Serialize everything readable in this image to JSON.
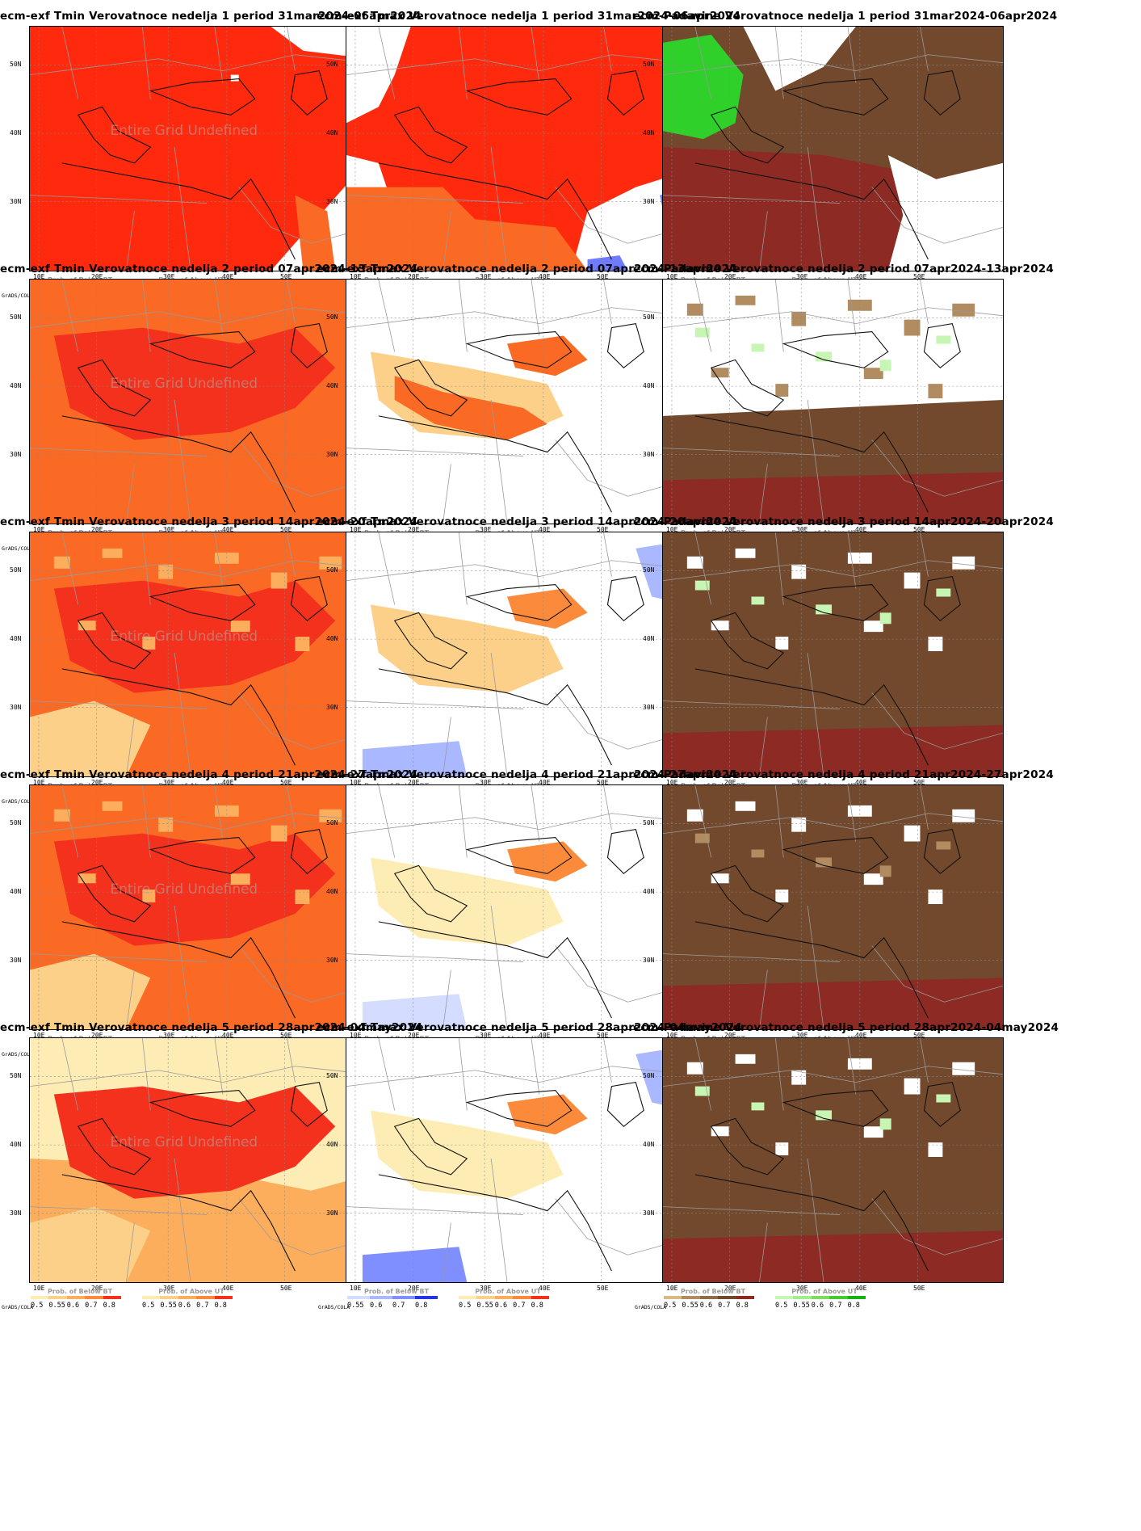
{
  "credit": "GrADS/COLA",
  "x_ticks": [
    "10E",
    "20E",
    "30E",
    "40E",
    "50E"
  ],
  "y_ticks": [
    "50N",
    "40N",
    "30N"
  ],
  "undefined_note": "Entire Grid Undefined",
  "legends": {
    "tmin": [
      {
        "title": "Prob. of Below BT",
        "ticks": [
          "0.5",
          "0.55",
          "0.6",
          "0.7",
          "0.8"
        ],
        "colors": [
          "#fdecb4",
          "#fdd08a",
          "#fdae5c",
          "#fb8a3a",
          "#f4311d"
        ]
      },
      {
        "title": "Prob. of Above UT",
        "ticks": [
          "0.5",
          "0.55",
          "0.6",
          "0.7",
          "0.8"
        ],
        "colors": [
          "#fdecb4",
          "#fdd08a",
          "#fdae5c",
          "#fb8a3a",
          "#f4311d"
        ]
      }
    ],
    "tmax": [
      {
        "title": "Prob. of Below BT",
        "ticks": [
          "0.55",
          "0.6",
          "0.7",
          "0.8"
        ],
        "colors": [
          "#d4dcff",
          "#aab8ff",
          "#7f8fff",
          "#2333e8"
        ]
      },
      {
        "title": "Prob. of Above UT",
        "ticks": [
          "0.5",
          "0.55",
          "0.6",
          "0.7",
          "0.8"
        ],
        "colors": [
          "#fdecb4",
          "#fdd08a",
          "#fdae5c",
          "#fb8a3a",
          "#f4311d"
        ]
      }
    ],
    "precip": [
      {
        "title": "Prob. of Below BT",
        "ticks": [
          "0.5",
          "0.55",
          "0.6",
          "0.7",
          "0.8"
        ],
        "colors": [
          "#d8b988",
          "#b08c60",
          "#8f6c48",
          "#73492d",
          "#8c2a23"
        ]
      },
      {
        "title": "Prob. of Above UT",
        "ticks": [
          "0.5",
          "0.55",
          "0.6",
          "0.7",
          "0.8"
        ],
        "colors": [
          "#c6f5b4",
          "#a3ed8a",
          "#7cdd5c",
          "#44cc2e",
          "#12b412"
        ]
      }
    ]
  },
  "rows": [
    {
      "week": 1,
      "panels": [
        {
          "title": "ecm-exf Tmin Verovatnoce nedelja 1 period 31mar2024-06apr2024",
          "type": "tmin",
          "undefined": true,
          "base": "#ff2a0e",
          "fills": [
            {
              "c": "#ffffff",
              "shape": "e1"
            },
            {
              "c": "#fb6a24",
              "shape": "e2"
            }
          ]
        },
        {
          "title": "ecm-exf Tmax Verovatnoce nedelja 1 period 31mar2024-06apr2024",
          "type": "tmax",
          "undefined": false,
          "base": "#ff2a0e",
          "fills": [
            {
              "c": "#ffffff",
              "shape": "w_left"
            },
            {
              "c": "#ffffff",
              "shape": "se"
            },
            {
              "c": "#fb6a24",
              "shape": "band_s"
            },
            {
              "c": "#6f7cff",
              "shape": "blue_se"
            }
          ]
        },
        {
          "title": "ecm-Padavine Verovatnoce nedelja 1 period 31mar2024-06apr2024",
          "type": "precip",
          "undefined": false,
          "base": "#8c2a23",
          "fills": [
            {
              "c": "#73492d",
              "shape": "band_n"
            },
            {
              "c": "#ffffff",
              "shape": "ne_w"
            },
            {
              "c": "#2fd02a",
              "shape": "green_nw"
            },
            {
              "c": "#ffffff",
              "shape": "se"
            }
          ]
        }
      ]
    },
    {
      "week": 2,
      "panels": [
        {
          "title": "ecm-exf Tmin Verovatnoce nedelja 2 period 07apr2024-13apr2024",
          "type": "tmin",
          "undefined": true,
          "base": "#fb6a24",
          "fills": [
            {
              "c": "#f4311d",
              "shape": "center"
            }
          ]
        },
        {
          "title": "ecm-exf Tmax Verovatnoce nedelja 2 period 07apr2024-13apr2024",
          "type": "tmax",
          "undefined": false,
          "base": "#ffffff",
          "fills": [
            {
              "c": "#fdd08a",
              "shape": "med_s"
            },
            {
              "c": "#fb6a24",
              "shape": "med"
            },
            {
              "c": "#fb6a24",
              "shape": "blacksea"
            }
          ]
        },
        {
          "title": "ecm-Padavine Verovatnoce nedelja 2 period 07apr2024-13apr2024",
          "type": "precip",
          "undefined": false,
          "base": "#ffffff",
          "fills": [
            {
              "c": "#73492d",
              "shape": "south"
            },
            {
              "c": "#8c2a23",
              "shape": "far_s"
            },
            {
              "c": "#b08c60",
              "shape": "spots_n"
            },
            {
              "c": "#c6f5b4",
              "shape": "spots_g"
            }
          ]
        }
      ]
    },
    {
      "week": 3,
      "panels": [
        {
          "title": "ecm-exf Tmin Verovatnoce nedelja 3 period 14apr2024-20apr2024",
          "type": "tmin",
          "undefined": true,
          "base": "#fb6a24",
          "fills": [
            {
              "c": "#f4311d",
              "shape": "center"
            },
            {
              "c": "#fdd08a",
              "shape": "sw"
            },
            {
              "c": "#fdae5c",
              "shape": "spots_n"
            }
          ]
        },
        {
          "title": "ecm-exf Tmax Verovatnoce nedelja 3 period 14apr2024-20apr2024",
          "type": "tmax",
          "undefined": false,
          "base": "#ffffff",
          "fills": [
            {
              "c": "#fdd08a",
              "shape": "med_s"
            },
            {
              "c": "#fb8a3a",
              "shape": "blacksea"
            },
            {
              "c": "#aab8ff",
              "shape": "blue_ne"
            },
            {
              "c": "#aab8ff",
              "shape": "blue_sw"
            }
          ]
        },
        {
          "title": "ecm-Padavine Verovatnoce nedelja 3 period 14apr2024-20apr2024",
          "type": "precip",
          "undefined": false,
          "base": "#73492d",
          "fills": [
            {
              "c": "#ffffff",
              "shape": "spots_n"
            },
            {
              "c": "#8c2a23",
              "shape": "far_s"
            },
            {
              "c": "#c6f5b4",
              "shape": "spots_g"
            }
          ]
        }
      ]
    },
    {
      "week": 4,
      "panels": [
        {
          "title": "ecm-exf Tmin Verovatnoce nedelja 4 period 21apr2024-27apr2024",
          "type": "tmin",
          "undefined": true,
          "base": "#fb6a24",
          "fills": [
            {
              "c": "#f4311d",
              "shape": "center"
            },
            {
              "c": "#fdd08a",
              "shape": "sw"
            },
            {
              "c": "#fdae5c",
              "shape": "spots_n"
            }
          ]
        },
        {
          "title": "ecm-exf Tmax Verovatnoce nedelja 4 period 21apr2024-27apr2024",
          "type": "tmax",
          "undefined": false,
          "base": "#ffffff",
          "fills": [
            {
              "c": "#fdecb4",
              "shape": "med_s"
            },
            {
              "c": "#fb8a3a",
              "shape": "blacksea"
            },
            {
              "c": "#d4dcff",
              "shape": "blue_sw"
            }
          ]
        },
        {
          "title": "ecm-Padavine Verovatnoce nedelja 4 period 21apr2024-27apr2024",
          "type": "precip",
          "undefined": false,
          "base": "#73492d",
          "fills": [
            {
              "c": "#ffffff",
              "shape": "spots_n"
            },
            {
              "c": "#8c2a23",
              "shape": "far_s"
            },
            {
              "c": "#b08c60",
              "shape": "spots_g"
            }
          ]
        }
      ]
    },
    {
      "week": 5,
      "panels": [
        {
          "title": "ecm-exf Tmin Verovatnoce nedelja 5 period 28apr2024-04may2024",
          "type": "tmin",
          "undefined": true,
          "base": "#fdae5c",
          "fills": [
            {
              "c": "#fdecb4",
              "shape": "band_n"
            },
            {
              "c": "#f4311d",
              "shape": "center"
            },
            {
              "c": "#fdd08a",
              "shape": "sw"
            }
          ]
        },
        {
          "title": "ecm-exf Tmax Verovatnoce nedelja 5 period 28apr2024-04may2024",
          "type": "tmax",
          "undefined": false,
          "base": "#ffffff",
          "fills": [
            {
              "c": "#fdecb4",
              "shape": "med_s"
            },
            {
              "c": "#fb8a3a",
              "shape": "blacksea"
            },
            {
              "c": "#aab8ff",
              "shape": "blue_ne"
            },
            {
              "c": "#7f8fff",
              "shape": "blue_sw"
            }
          ]
        },
        {
          "title": "ecm-Padavine Verovatnoce nedelja 5 period 28apr2024-04may2024",
          "type": "precip",
          "undefined": false,
          "base": "#73492d",
          "fills": [
            {
              "c": "#ffffff",
              "shape": "spots_n"
            },
            {
              "c": "#8c2a23",
              "shape": "far_s"
            },
            {
              "c": "#c6f5b4",
              "shape": "spots_g"
            }
          ]
        }
      ]
    }
  ]
}
